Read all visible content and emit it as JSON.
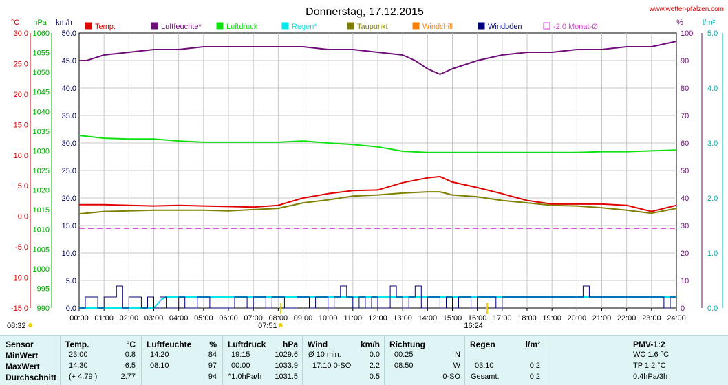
{
  "title": "Donnerstag, 17.12.2015",
  "site": "www.wetter-pfalzen.com",
  "axis_units": {
    "temp": "°C",
    "pressure": "hPa",
    "wind": "km/h",
    "humidity": "%",
    "rain": "l/m²"
  },
  "legend": [
    {
      "label": "Temp.",
      "color": "#e00000"
    },
    {
      "label": "Luftfeuchte*",
      "color": "#6e0d78"
    },
    {
      "label": "Luftdruck",
      "color": "#10e010"
    },
    {
      "label": "Regen*",
      "color": "#00e8e8"
    },
    {
      "label": "Taupunkt",
      "color": "#808000"
    },
    {
      "label": "Windchill",
      "color": "#ff8000"
    },
    {
      "label": "Windböen",
      "color": "#000080"
    },
    {
      "label": "-2.0 Monat-Ø",
      "color": "#d040d0"
    }
  ],
  "sun_markers": {
    "sunrise": "08:32",
    "sunset": "16:24",
    "solar_left": "07:51"
  },
  "chart_data": {
    "type": "line",
    "x_ticks": [
      "00:00",
      "01:00",
      "02:00",
      "03:00",
      "04:00",
      "05:00",
      "06:00",
      "07:00",
      "08:00",
      "09:00",
      "10:00",
      "11:00",
      "12:00",
      "13:00",
      "14:00",
      "15:00",
      "16:00",
      "17:00",
      "18:00",
      "19:00",
      "20:00",
      "21:00",
      "22:00",
      "23:00",
      "24:00"
    ],
    "axes": {
      "temp": {
        "min": -15,
        "max": 30,
        "ticks": [
          "30.0",
          "25.0",
          "20.0",
          "15.0",
          "10.0",
          "5.0",
          "0.0",
          "-5.0",
          "-10.0",
          "-15.0"
        ]
      },
      "pressure": {
        "min": 990,
        "max": 1060,
        "ticks": [
          "1060",
          "1055",
          "1050",
          "1045",
          "1040",
          "1035",
          "1030",
          "1025",
          "1020",
          "1015",
          "1010",
          "1005",
          "1000",
          "995",
          "990"
        ]
      },
      "wind": {
        "min": 0,
        "max": 50,
        "ticks": [
          "50.0",
          "45.0",
          "40.0",
          "35.0",
          "30.0",
          "25.0",
          "20.0",
          "15.0",
          "10.0",
          "5.0",
          "0.0"
        ]
      },
      "humidity": {
        "min": 0,
        "max": 100,
        "ticks": [
          "100",
          "90",
          "80",
          "70",
          "60",
          "50",
          "40",
          "30",
          "20",
          "10",
          "0"
        ]
      },
      "rain": {
        "min": 0,
        "max": 5,
        "ticks": [
          "5.0",
          "4.0",
          "3.0",
          "2.0",
          "1.0",
          "0.0"
        ]
      }
    },
    "series": [
      {
        "name": "Temp.",
        "axis": "temp",
        "hours": [
          0,
          1,
          2,
          3,
          4,
          5,
          6,
          7,
          8,
          9,
          10,
          11,
          12,
          13,
          14,
          14.5,
          15,
          16,
          17,
          18,
          19,
          20,
          21,
          22,
          23,
          24
        ],
        "values": [
          1.9,
          1.9,
          1.8,
          1.7,
          1.8,
          1.7,
          1.6,
          1.5,
          1.8,
          3.0,
          3.7,
          4.2,
          4.3,
          5.5,
          6.3,
          6.5,
          5.6,
          4.7,
          3.7,
          2.6,
          2.0,
          2.0,
          2.0,
          1.8,
          0.8,
          1.8
        ]
      },
      {
        "name": "Taupunkt",
        "axis": "temp",
        "hours": [
          0,
          1,
          2,
          3,
          4,
          5,
          6,
          7,
          8,
          9,
          10,
          11,
          12,
          13,
          14,
          14.5,
          15,
          16,
          17,
          18,
          19,
          20,
          21,
          22,
          23,
          24
        ],
        "values": [
          0.4,
          0.8,
          0.9,
          1.0,
          1.0,
          1.0,
          0.9,
          1.1,
          1.3,
          2.2,
          2.7,
          3.3,
          3.5,
          3.8,
          4.0,
          4.0,
          3.5,
          3.2,
          2.6,
          2.2,
          1.8,
          1.7,
          1.4,
          1.0,
          0.5,
          1.3
        ]
      },
      {
        "name": "Luftfeuchte*",
        "axis": "humidity",
        "hours": [
          0,
          0.3,
          1,
          2,
          3,
          4,
          5,
          6,
          7,
          8,
          9,
          10,
          11,
          12,
          13,
          13.5,
          14,
          14.5,
          15,
          16,
          17,
          18,
          19,
          20,
          21,
          22,
          23,
          24
        ],
        "values": [
          90,
          90,
          92,
          93,
          94,
          94,
          95,
          95,
          95,
          95,
          95,
          94,
          94,
          93,
          92,
          90,
          87,
          85,
          87,
          90,
          92,
          93,
          93,
          94,
          94,
          95,
          95,
          97
        ]
      },
      {
        "name": "Luftdruck",
        "axis": "pressure",
        "hours": [
          0,
          1,
          2,
          3,
          4,
          5,
          6,
          7,
          8,
          9,
          10,
          11,
          12,
          13,
          14,
          15,
          16,
          17,
          18,
          19,
          20,
          21,
          22,
          23,
          24
        ],
        "values": [
          1033.9,
          1033.2,
          1033.0,
          1033.0,
          1032.5,
          1032.2,
          1032.2,
          1032.2,
          1032.2,
          1032.5,
          1032.0,
          1031.6,
          1031.0,
          1029.9,
          1029.6,
          1029.6,
          1029.6,
          1029.6,
          1029.6,
          1029.6,
          1029.6,
          1029.8,
          1029.8,
          1030.0,
          1030.2
        ]
      },
      {
        "name": "Regen*",
        "axis": "rain",
        "hours": [
          0,
          3,
          3.1,
          3.3,
          3.5,
          3.7,
          4,
          24
        ],
        "values": [
          0,
          0,
          0.05,
          0.15,
          0.2,
          0.2,
          0.2,
          0.2
        ]
      },
      {
        "name": "-2.0 Monat-Ø",
        "axis": "temp",
        "hours": [
          0,
          24
        ],
        "values": [
          -2.0,
          -2.0
        ]
      }
    ],
    "gusts": {
      "axis": "wind",
      "step_hours": 0.25,
      "values": [
        0,
        2,
        2,
        0,
        2,
        2,
        4,
        0,
        2,
        2,
        0,
        2,
        0,
        2,
        0,
        0,
        2,
        0,
        0,
        2,
        2,
        0,
        0,
        0,
        0,
        2,
        2,
        0,
        2,
        2,
        0,
        2,
        2,
        0,
        0,
        2,
        2,
        0,
        2,
        2,
        0,
        2,
        4,
        2,
        0,
        2,
        0,
        2,
        0,
        0,
        4,
        2,
        0,
        2,
        4,
        0,
        2,
        2,
        0,
        2,
        0,
        2,
        2,
        0,
        2,
        2,
        2,
        0,
        2,
        2,
        2,
        2,
        2,
        2,
        2,
        2,
        2,
        2,
        2,
        2,
        2,
        4,
        2,
        2,
        2,
        2,
        2,
        2,
        2,
        2,
        2,
        2,
        2,
        2,
        0,
        2
      ]
    }
  },
  "summary": {
    "sensor": {
      "header": "Sensor",
      "rows": [
        "MinWert",
        "MaxWert",
        "Durchschnitt"
      ]
    },
    "temp": {
      "header": "Temp.",
      "unit": "°C",
      "rows": [
        [
          "23:00",
          "0.8"
        ],
        [
          "14:30",
          "6.5"
        ],
        [
          "(+ 4.79 )",
          "2.77"
        ]
      ]
    },
    "humidity": {
      "header": "Luftfeuchte",
      "unit": "%",
      "rows": [
        [
          "14:20",
          "84"
        ],
        [
          "08:10",
          "97"
        ],
        [
          "",
          "94"
        ]
      ]
    },
    "pressure": {
      "header": "Luftdruck",
      "unit": "hPa",
      "rows": [
        [
          "19:15",
          "1029.6"
        ],
        [
          "00:00",
          "1033.9"
        ],
        [
          "^1.0hPa/h",
          "1031.5"
        ]
      ]
    },
    "wind": {
      "header": "Wind",
      "unit": "km/h",
      "rows": [
        [
          "Ø 10 min.",
          "0.0"
        ],
        [
          "17:10   0-SO",
          "2.2"
        ],
        [
          "",
          "0.5"
        ]
      ]
    },
    "direction": {
      "header": "Richtung",
      "rows": [
        [
          "00:25",
          "N"
        ],
        [
          "08:50",
          "W"
        ],
        [
          "",
          "0-SO"
        ]
      ]
    },
    "rain": {
      "header": "Regen",
      "unit": "l/m²",
      "rows": [
        [
          "",
          ""
        ],
        [
          "03:10",
          "0.2"
        ],
        [
          "Gesamt:",
          "0.2"
        ]
      ]
    },
    "pmv": {
      "header": "PMV-1:2",
      "rows": [
        "WC 1.6 °C",
        "TP 1.2 °C",
        "0.4hPa/3h"
      ]
    }
  }
}
